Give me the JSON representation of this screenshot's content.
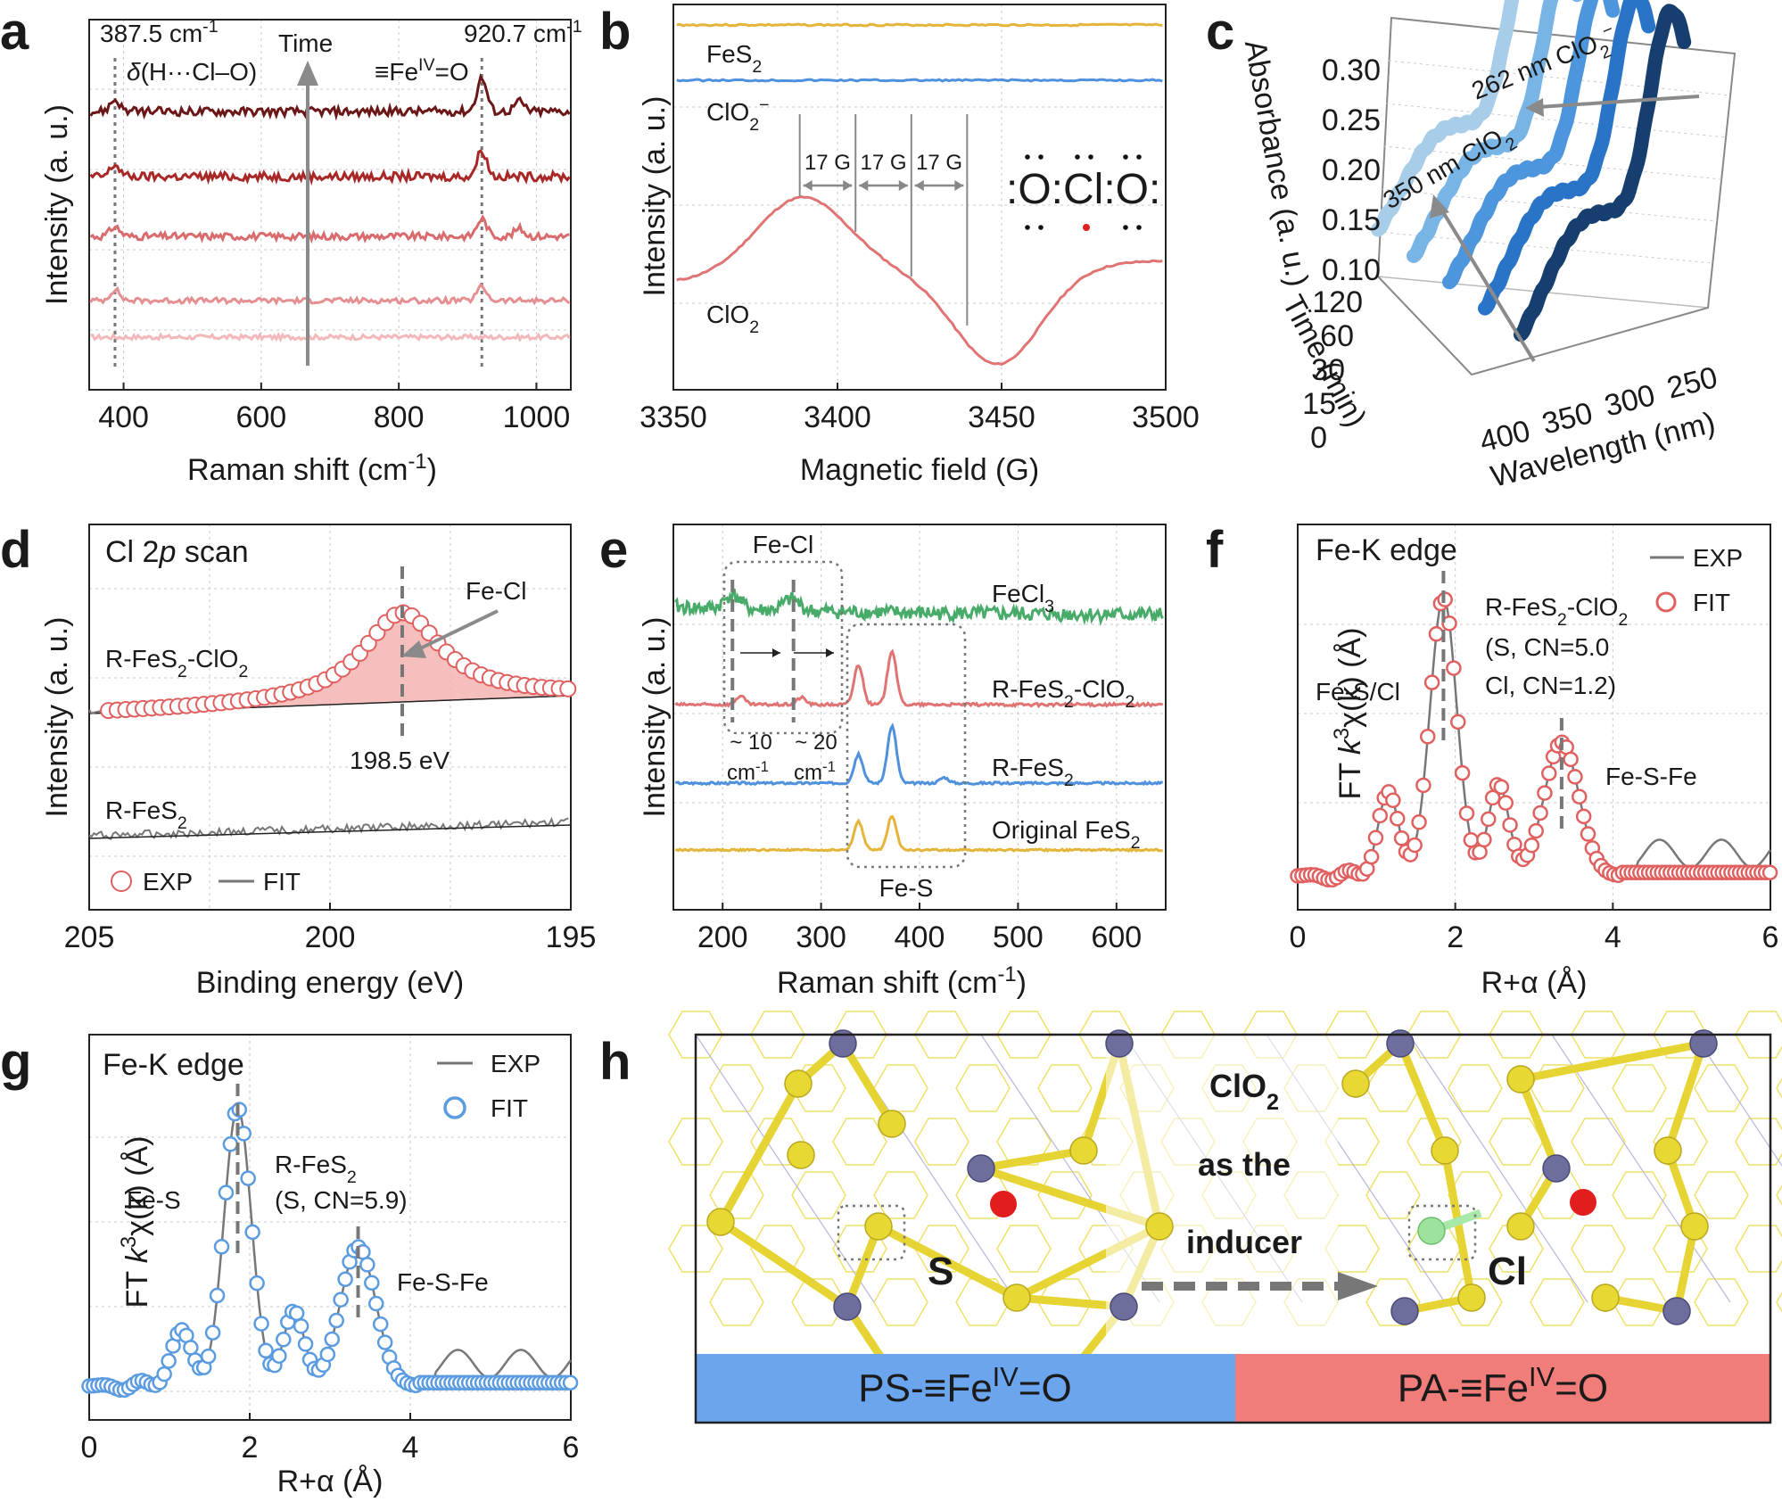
{
  "panels": {
    "a": "a",
    "b": "b",
    "c": "c",
    "d": "d",
    "e": "e",
    "f": "f",
    "g": "g",
    "h": "h"
  },
  "colors": {
    "raman_series": [
      "#f2b8ba",
      "#e58f92",
      "#d96a6d",
      "#a82828",
      "#6b1717"
    ],
    "fes2": "#e5b53b",
    "clo2_minus": "#4f91dd",
    "clo2": "#e07474",
    "fecl3": "#49ab6a",
    "exp_gray": "#777777",
    "fit_red": "#e06060",
    "fit_blue": "#5b9be0",
    "ps_bar": "#6aa5ee",
    "pa_bar": "#f07d7a",
    "uv_series": [
      "#a8cde8",
      "#79b4e6",
      "#4d95dc",
      "#2a74c8",
      "#163f70"
    ]
  },
  "chart_data": [
    {
      "id": "a",
      "type": "line",
      "xlabel": "Raman shift (cm-1)",
      "ylabel": "Intensity (a. u.)",
      "xlim": [
        350,
        1050
      ],
      "xticks": [
        400,
        600,
        800,
        1000
      ],
      "annotations": [
        "387.5 cm-1",
        "920.7 cm-1",
        "δ(H···Cl–O)",
        "≡FeIV=O",
        "Time"
      ],
      "marker_lines": [
        387.5,
        920.7
      ],
      "series": [
        {
          "offset": 0.0,
          "peaks": [],
          "noise": 0.12
        },
        {
          "offset": 1.0,
          "peaks": [
            [
              387.5,
              0.55
            ],
            [
              920.7,
              0.7
            ]
          ],
          "noise": 0.14
        },
        {
          "offset": 2.0,
          "peaks": [
            [
              387.5,
              0.5
            ],
            [
              920.7,
              0.9
            ],
            [
              975,
              0.4
            ]
          ],
          "noise": 0.18
        },
        {
          "offset": 3.05,
          "peaks": [
            [
              387.5,
              0.6
            ],
            [
              920.7,
              1.35
            ]
          ],
          "noise": 0.22
        },
        {
          "offset": 4.1,
          "peaks": [
            [
              387.5,
              0.6
            ],
            [
              920.7,
              1.7
            ],
            [
              975,
              0.5
            ]
          ],
          "noise": 0.22
        }
      ]
    },
    {
      "id": "b",
      "type": "line",
      "xlabel": "Magnetic field (G)",
      "ylabel": "Intensity (a. u.)",
      "xlim": [
        3350,
        3500
      ],
      "xticks": [
        3350,
        3400,
        3450,
        3500
      ],
      "series": [
        {
          "name": "FeS2"
        },
        {
          "name": "ClO2−"
        },
        {
          "name": "ClO2"
        }
      ],
      "hyperfine_lines": [
        3388.5,
        3405.5,
        3422.5,
        3439.5
      ],
      "hyperfine_labels": [
        "17 G",
        "17 G",
        "17 G"
      ],
      "structure_text": ":O:Cl:O:"
    },
    {
      "id": "c",
      "type": "area",
      "xlabel": "Wavelength (nm)",
      "ylabel": "Absorbance (a. u.)",
      "zlabel": "Time (min)",
      "xticks": [
        400,
        350,
        300,
        250
      ],
      "yticks": [
        0.1,
        0.15,
        0.2,
        0.25,
        0.3
      ],
      "time_ticks": [
        120,
        60,
        30,
        15,
        0
      ],
      "annotations": [
        "262 nm ClO2−",
        "350 nm ClO2"
      ]
    },
    {
      "id": "d",
      "type": "line",
      "title": "Cl 2p scan",
      "xlabel": "Binding energy (eV)",
      "ylabel": "Intensity (a. u.)",
      "xlim": [
        205,
        195
      ],
      "xticks": [
        205,
        200,
        195
      ],
      "peak_center": 198.5,
      "series": [
        {
          "name": "R-FeS2-ClO2"
        },
        {
          "name": "R-FeS2"
        }
      ],
      "legend": [
        {
          "name": "EXP"
        },
        {
          "name": "FIT"
        }
      ],
      "annotations": [
        "Fe-Cl",
        "198.5 eV"
      ]
    },
    {
      "id": "e",
      "type": "line",
      "xlabel": "Raman shift (cm-1)",
      "ylabel": "Intensity (a. u.)",
      "xlim": [
        150,
        650
      ],
      "xticks": [
        200,
        300,
        400,
        500,
        600
      ],
      "series": [
        {
          "name": "FeCl3",
          "peaks": [
            [
              210,
              0.5
            ],
            [
              270,
              0.4
            ]
          ]
        },
        {
          "name": "R-FeS2-ClO2",
          "peaks": [
            [
              218,
              0.3
            ],
            [
              280,
              0.25
            ],
            [
              338,
              1.4
            ],
            [
              372,
              1.9
            ]
          ]
        },
        {
          "name": "R-FeS2",
          "peaks": [
            [
              338,
              1.0
            ],
            [
              372,
              2.0
            ],
            [
              425,
              0.2
            ]
          ]
        },
        {
          "name": "Original FeS2",
          "peaks": [
            [
              338,
              1.0
            ],
            [
              372,
              1.2
            ]
          ]
        }
      ],
      "annotations": [
        "Fe-Cl",
        "Fe-S",
        "~ 10",
        "~ 20",
        "cm-1",
        "cm-1"
      ]
    },
    {
      "id": "f",
      "type": "line",
      "xlabel": "R+α (Å)",
      "ylabel": "FT k3χ(k) (Å)",
      "xlim": [
        0,
        6
      ],
      "xticks": [
        0,
        2,
        4,
        6
      ],
      "legend": [
        {
          "name": "EXP"
        },
        {
          "name": "FIT"
        }
      ],
      "annotations": [
        "Fe-K edge",
        "R-FeS2-ClO2",
        "(S, CN=5.0",
        "Cl, CN=1.2)",
        "Fe-S/Cl",
        "Fe-S-Fe"
      ],
      "peaks": [
        [
          1.15,
          0.3
        ],
        [
          1.85,
          1.0
        ],
        [
          2.55,
          0.33
        ],
        [
          3.35,
          0.48
        ]
      ]
    },
    {
      "id": "g",
      "type": "line",
      "xlabel": "R+α (Å)",
      "ylabel": "FT k3χ(k) (Å)",
      "xlim": [
        0,
        6
      ],
      "xticks": [
        0,
        2,
        4,
        6
      ],
      "legend": [
        {
          "name": "EXP"
        },
        {
          "name": "FIT"
        }
      ],
      "annotations": [
        "Fe-K edge",
        "R-FeS2",
        "(S, CN=5.9)",
        "Fe-S",
        "Fe-S-Fe"
      ],
      "peaks": [
        [
          1.15,
          0.2
        ],
        [
          1.85,
          1.0
        ],
        [
          2.55,
          0.27
        ],
        [
          3.35,
          0.5
        ]
      ]
    }
  ],
  "panel_h": {
    "labels": [
      "ClO2",
      "as the",
      "inducer",
      "S",
      "Cl"
    ],
    "bar_left": "PS-≡FeIV=O",
    "bar_right": "PA-≡FeIV=O"
  }
}
